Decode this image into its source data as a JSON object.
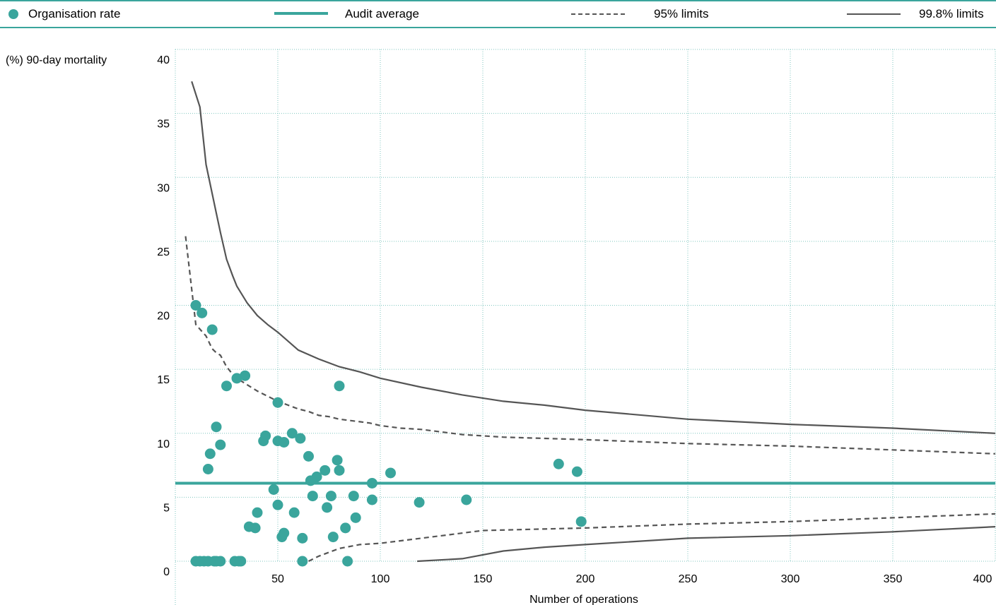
{
  "legend": {
    "organisation_rate": "Organisation rate",
    "audit_average": "Audit average",
    "limits_95": "95% limits",
    "limits_998": "99.8% limits"
  },
  "colors": {
    "teal": "#3aa59c",
    "grey": "#555555",
    "grid": "#7fc6bf"
  },
  "chart_data": {
    "type": "scatter",
    "ylabel": "(%) 90-day mortality",
    "xlabel": "Number of operations",
    "xlim": [
      0,
      400
    ],
    "ylim": [
      0,
      40
    ],
    "xticks": [
      50,
      100,
      150,
      200,
      250,
      300,
      350,
      400
    ],
    "yticks": [
      0,
      5,
      10,
      15,
      20,
      25,
      30,
      35,
      40
    ],
    "audit_average": 6.1,
    "points": [
      [
        10,
        20.0
      ],
      [
        13,
        19.4
      ],
      [
        18,
        18.1
      ],
      [
        20,
        10.5
      ],
      [
        22,
        9.1
      ],
      [
        17,
        8.4
      ],
      [
        16,
        7.2
      ],
      [
        25,
        13.7
      ],
      [
        30,
        14.3
      ],
      [
        34,
        14.5
      ],
      [
        50,
        12.4
      ],
      [
        44,
        9.8
      ],
      [
        43,
        9.4
      ],
      [
        50,
        9.4
      ],
      [
        53,
        9.3
      ],
      [
        57,
        10.0
      ],
      [
        61,
        9.6
      ],
      [
        65,
        8.2
      ],
      [
        66,
        6.3
      ],
      [
        69,
        6.6
      ],
      [
        73,
        7.1
      ],
      [
        79,
        7.9
      ],
      [
        80,
        7.1
      ],
      [
        80,
        13.7
      ],
      [
        96,
        6.1
      ],
      [
        105,
        6.9
      ],
      [
        187,
        7.6
      ],
      [
        196,
        7.0
      ],
      [
        48,
        5.6
      ],
      [
        50,
        4.4
      ],
      [
        40,
        3.8
      ],
      [
        58,
        3.8
      ],
      [
        67,
        5.1
      ],
      [
        76,
        5.1
      ],
      [
        87,
        5.1
      ],
      [
        96,
        4.8
      ],
      [
        74,
        4.2
      ],
      [
        36,
        2.7
      ],
      [
        39,
        2.6
      ],
      [
        52,
        1.9
      ],
      [
        53,
        2.2
      ],
      [
        62,
        1.8
      ],
      [
        77,
        1.9
      ],
      [
        83,
        2.6
      ],
      [
        88,
        3.4
      ],
      [
        119,
        4.6
      ],
      [
        142,
        4.8
      ],
      [
        198,
        3.1
      ],
      [
        10,
        0
      ],
      [
        12,
        0
      ],
      [
        14,
        0
      ],
      [
        16,
        0
      ],
      [
        19,
        0
      ],
      [
        20,
        0
      ],
      [
        22,
        0
      ],
      [
        29,
        0
      ],
      [
        31,
        0
      ],
      [
        32,
        0
      ],
      [
        62,
        0
      ],
      [
        84,
        0
      ]
    ],
    "series": [
      {
        "name": "95% limits",
        "style": "dashed",
        "x": [
          5,
          10,
          15,
          18,
          20,
          22,
          25,
          28,
          30,
          35,
          40,
          45,
          50,
          55,
          60,
          65,
          70,
          75,
          80,
          85,
          90,
          95,
          100,
          110,
          120,
          130,
          140,
          160,
          180,
          200,
          250,
          300,
          350,
          400
        ],
        "y": [
          25.4,
          18.5,
          17.6,
          16.6,
          16.3,
          16.1,
          15.2,
          14.6,
          14.3,
          13.8,
          13.3,
          12.9,
          12.5,
          12.2,
          11.9,
          11.7,
          11.4,
          11.3,
          11.1,
          11.0,
          10.9,
          10.8,
          10.6,
          10.4,
          10.3,
          10.1,
          9.9,
          9.7,
          9.6,
          9.5,
          9.2,
          9.0,
          8.7,
          8.4
        ]
      },
      {
        "name": "95% limits",
        "style": "dashed",
        "x": [
          65,
          70,
          80,
          90,
          100,
          110,
          120,
          130,
          145,
          150,
          200,
          250,
          300,
          350,
          400
        ],
        "y": [
          0,
          0.4,
          1.0,
          1.3,
          1.4,
          1.6,
          1.8,
          2.0,
          2.3,
          2.4,
          2.6,
          2.9,
          3.1,
          3.4,
          3.7
        ]
      },
      {
        "name": "99.8% limits",
        "style": "solid",
        "x": [
          8,
          10,
          12,
          15,
          20,
          22,
          25,
          28,
          30,
          35,
          40,
          45,
          50,
          60,
          70,
          80,
          90,
          100,
          120,
          140,
          160,
          180,
          200,
          250,
          300,
          350,
          400
        ],
        "y": [
          37.5,
          36.5,
          35.5,
          31.0,
          27.2,
          25.7,
          23.6,
          22.3,
          21.5,
          20.2,
          19.2,
          18.5,
          17.9,
          16.5,
          15.8,
          15.2,
          14.8,
          14.3,
          13.6,
          13.0,
          12.5,
          12.2,
          11.8,
          11.1,
          10.7,
          10.4,
          10.0
        ]
      },
      {
        "name": "99.8% limits",
        "style": "solid",
        "x": [
          118,
          140,
          160,
          180,
          200,
          220,
          250,
          300,
          350,
          400
        ],
        "y": [
          0,
          0.2,
          0.8,
          1.1,
          1.3,
          1.5,
          1.8,
          2.0,
          2.3,
          2.7
        ]
      }
    ]
  }
}
